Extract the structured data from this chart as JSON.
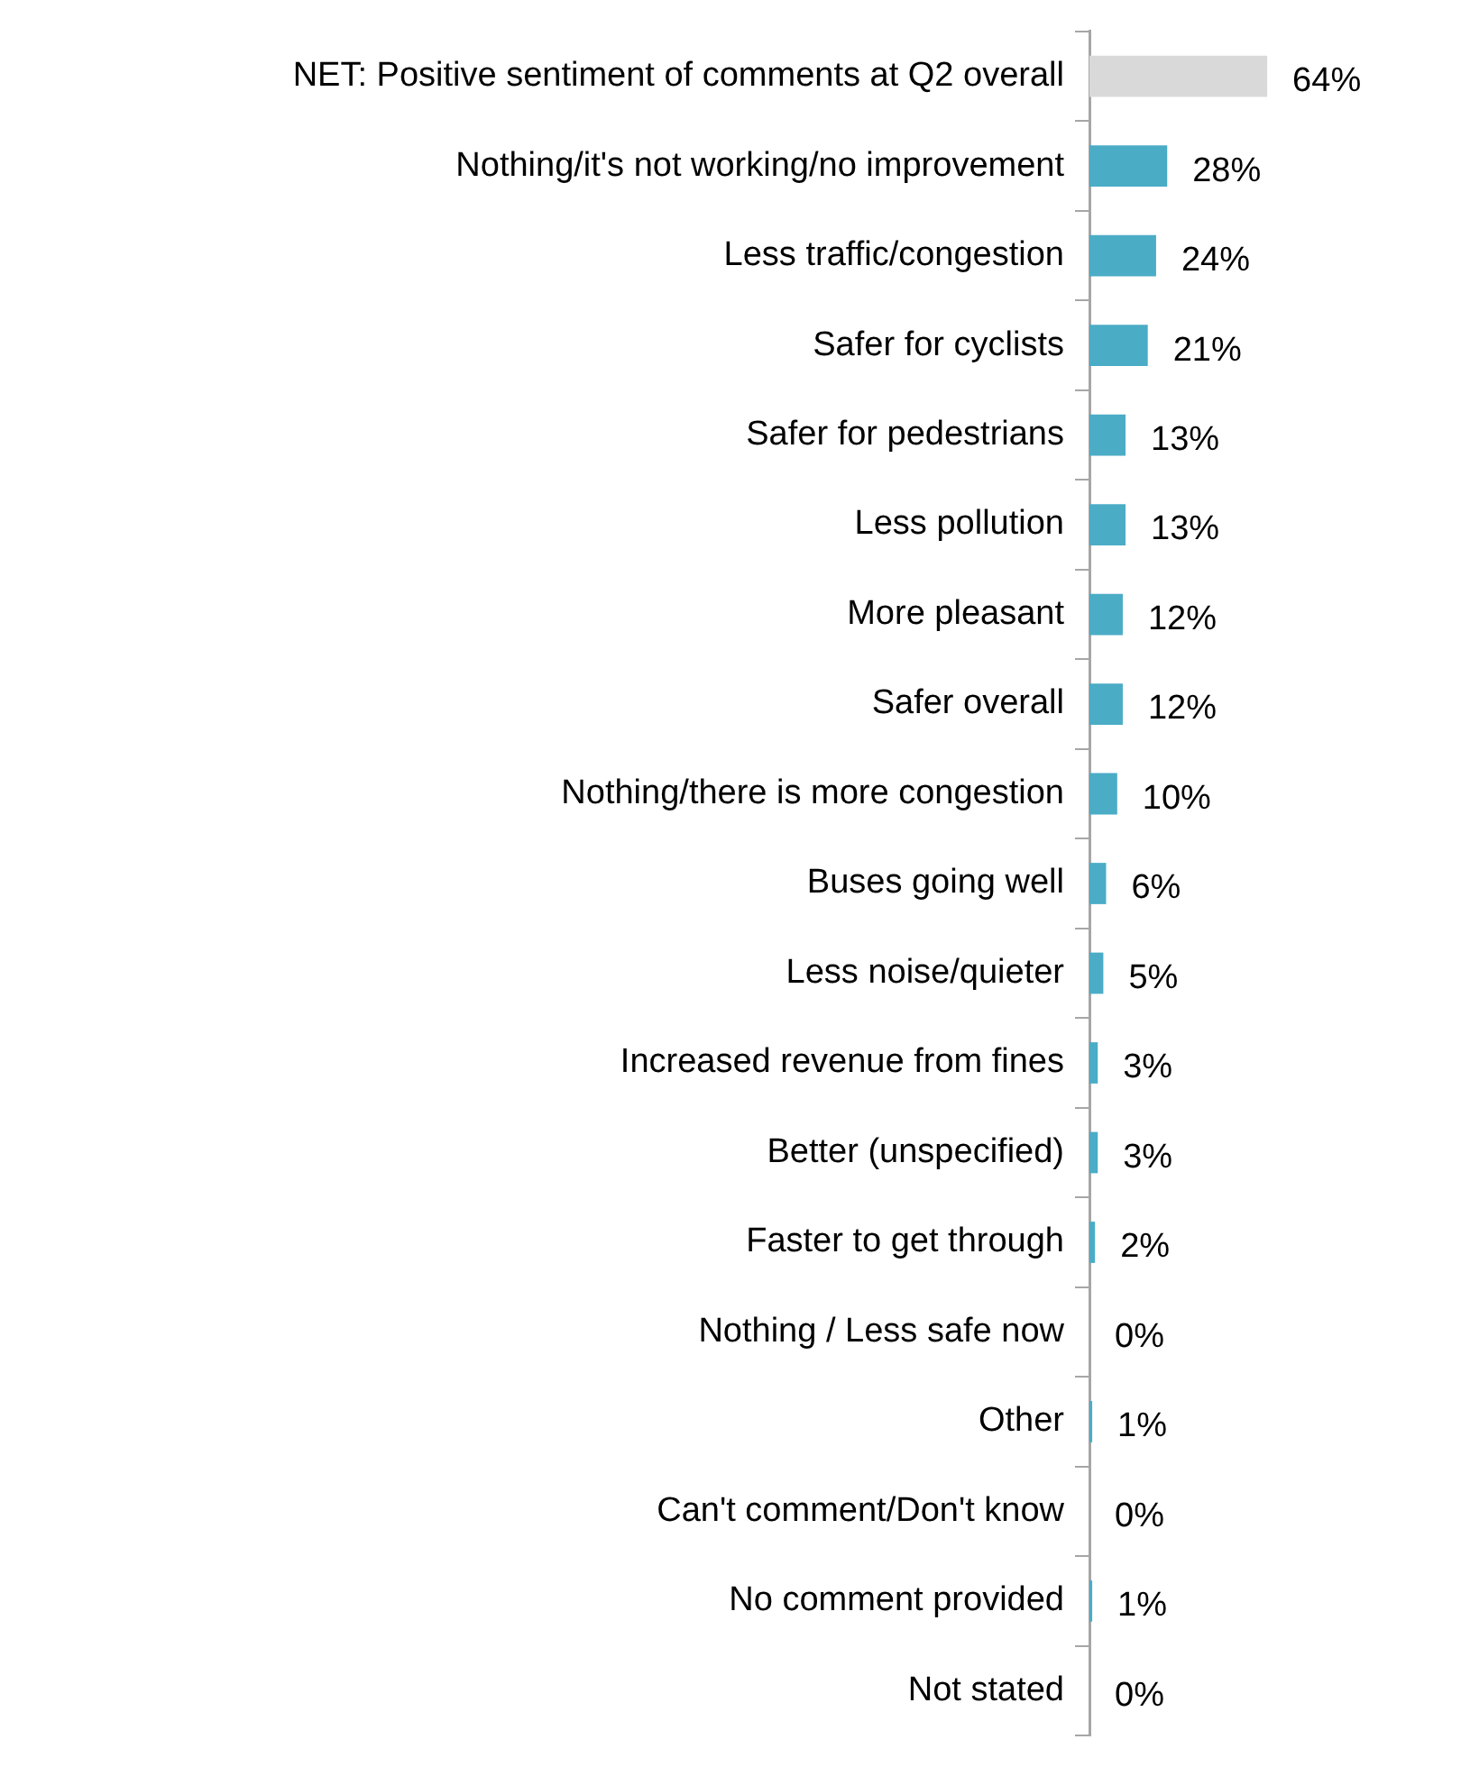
{
  "chart_data": {
    "type": "bar",
    "orientation": "horizontal",
    "categories": [
      "NET: Positive sentiment of comments at Q2 overall",
      "Nothing/it's not working/no improvement",
      "Less traffic/congestion",
      "Safer for cyclists",
      "Safer for pedestrians",
      "Less pollution",
      "More pleasant",
      "Safer overall",
      "Nothing/there is more congestion",
      "Buses going well",
      "Less noise/quieter",
      "Increased revenue from fines",
      "Better (unspecified)",
      "Faster to get through",
      "Nothing / Less safe now",
      "Other",
      "Can't comment/Don't know",
      "No comment provided",
      "Not stated"
    ],
    "values": [
      64,
      28,
      24,
      21,
      13,
      13,
      12,
      12,
      10,
      6,
      5,
      3,
      3,
      2,
      0,
      1,
      0,
      1,
      0
    ],
    "colors": [
      "#d9d9d9",
      "#4bacc6",
      "#4bacc6",
      "#4bacc6",
      "#4bacc6",
      "#4bacc6",
      "#4bacc6",
      "#4bacc6",
      "#4bacc6",
      "#4bacc6",
      "#4bacc6",
      "#4bacc6",
      "#4bacc6",
      "#4bacc6",
      "#4bacc6",
      "#4bacc6",
      "#4bacc6",
      "#4bacc6",
      "#4bacc6"
    ],
    "value_labels": [
      "64%",
      "28%",
      "24%",
      "21%",
      "13%",
      "13%",
      "12%",
      "12%",
      "10%",
      "6%",
      "5%",
      "3%",
      "3%",
      "2%",
      "0%",
      "1%",
      "0%",
      "1%",
      "0%"
    ],
    "tick_labels": "y",
    "grid": false,
    "legend": false
  }
}
